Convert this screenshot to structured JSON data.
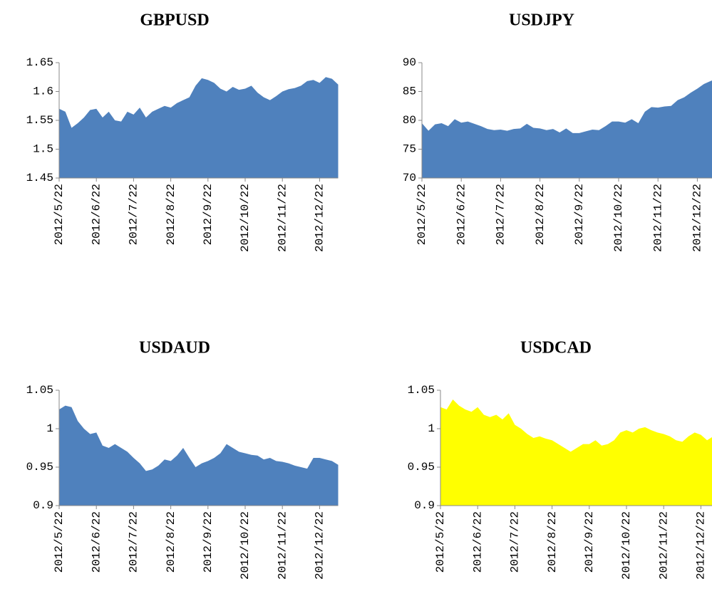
{
  "chart_data": [
    {
      "type": "area",
      "title": "GBPUSD",
      "color": "#4f81bd",
      "ylim": [
        1.45,
        1.65
      ],
      "yticks": [
        1.45,
        1.5,
        1.55,
        1.6,
        1.65
      ],
      "categories": [
        "2012/5/22",
        null,
        null,
        null,
        null,
        null,
        "2012/6/22",
        null,
        null,
        null,
        null,
        null,
        "2012/7/22",
        null,
        null,
        null,
        null,
        null,
        "2012/8/22",
        null,
        null,
        null,
        null,
        null,
        "2012/9/22",
        null,
        null,
        null,
        null,
        null,
        "2012/10/22",
        null,
        null,
        null,
        null,
        null,
        "2012/11/22",
        null,
        null,
        null,
        null,
        null,
        "2012/12/22",
        null,
        null,
        null
      ],
      "values": [
        1.57,
        1.565,
        1.537,
        1.545,
        1.555,
        1.568,
        1.57,
        1.555,
        1.565,
        1.55,
        1.548,
        1.565,
        1.56,
        1.572,
        1.555,
        1.565,
        1.57,
        1.575,
        1.572,
        1.58,
        1.585,
        1.59,
        1.61,
        1.623,
        1.62,
        1.615,
        1.605,
        1.6,
        1.608,
        1.603,
        1.605,
        1.61,
        1.598,
        1.59,
        1.585,
        1.592,
        1.6,
        1.604,
        1.606,
        1.61,
        1.618,
        1.62,
        1.615,
        1.625,
        1.622,
        1.612
      ]
    },
    {
      "type": "area",
      "title": "USDJPY",
      "color": "#4f81bd",
      "ylim": [
        70,
        90
      ],
      "yticks": [
        70,
        75,
        80,
        85,
        90
      ],
      "categories": [
        "2012/5/22",
        null,
        null,
        null,
        null,
        null,
        "2012/6/22",
        null,
        null,
        null,
        null,
        null,
        "2012/7/22",
        null,
        null,
        null,
        null,
        null,
        "2012/8/22",
        null,
        null,
        null,
        null,
        null,
        "2012/9/22",
        null,
        null,
        null,
        null,
        null,
        "2012/10/22",
        null,
        null,
        null,
        null,
        null,
        "2012/11/22",
        null,
        null,
        null,
        null,
        null,
        "2012/12/22",
        null,
        null,
        null
      ],
      "values": [
        79.5,
        78.2,
        79.3,
        79.5,
        79.0,
        80.2,
        79.6,
        79.8,
        79.4,
        79.0,
        78.5,
        78.3,
        78.4,
        78.2,
        78.5,
        78.6,
        79.4,
        78.7,
        78.6,
        78.3,
        78.5,
        77.9,
        78.6,
        77.8,
        77.8,
        78.1,
        78.4,
        78.3,
        79.0,
        79.8,
        79.8,
        79.6,
        80.2,
        79.5,
        81.5,
        82.3,
        82.2,
        82.4,
        82.5,
        83.5,
        84.0,
        84.8,
        85.5,
        86.3,
        86.8,
        87.3
      ]
    },
    {
      "type": "area",
      "title": "USDAUD",
      "color": "#4f81bd",
      "ylim": [
        0.9,
        1.05
      ],
      "yticks": [
        0.9,
        0.95,
        1,
        1.05
      ],
      "categories": [
        "2012/5/22",
        null,
        null,
        null,
        null,
        null,
        "2012/6/22",
        null,
        null,
        null,
        null,
        null,
        "2012/7/22",
        null,
        null,
        null,
        null,
        null,
        "2012/8/22",
        null,
        null,
        null,
        null,
        null,
        "2012/9/22",
        null,
        null,
        null,
        null,
        null,
        "2012/10/22",
        null,
        null,
        null,
        null,
        null,
        "2012/11/22",
        null,
        null,
        null,
        null,
        null,
        "2012/12/22",
        null,
        null,
        null
      ],
      "values": [
        1.025,
        1.03,
        1.028,
        1.01,
        1.0,
        0.993,
        0.995,
        0.978,
        0.975,
        0.98,
        0.975,
        0.97,
        0.962,
        0.955,
        0.945,
        0.947,
        0.952,
        0.96,
        0.958,
        0.965,
        0.975,
        0.962,
        0.95,
        0.955,
        0.958,
        0.962,
        0.968,
        0.98,
        0.975,
        0.97,
        0.968,
        0.966,
        0.965,
        0.96,
        0.962,
        0.958,
        0.957,
        0.955,
        0.952,
        0.95,
        0.948,
        0.962,
        0.962,
        0.96,
        0.958,
        0.953
      ]
    },
    {
      "type": "area",
      "title": "USDCAD",
      "color": "#ffff00",
      "ylim": [
        0.9,
        1.05
      ],
      "yticks": [
        0.9,
        0.95,
        1,
        1.05
      ],
      "categories": [
        "2012/5/22",
        null,
        null,
        null,
        null,
        null,
        "2012/6/22",
        null,
        null,
        null,
        null,
        null,
        "2012/7/22",
        null,
        null,
        null,
        null,
        null,
        "2012/8/22",
        null,
        null,
        null,
        null,
        null,
        "2012/9/22",
        null,
        null,
        null,
        null,
        null,
        "2012/10/22",
        null,
        null,
        null,
        null,
        null,
        "2012/11/22",
        null,
        null,
        null,
        null,
        null,
        "2012/12/22",
        null,
        null,
        null
      ],
      "values": [
        1.028,
        1.025,
        1.038,
        1.03,
        1.025,
        1.022,
        1.028,
        1.018,
        1.015,
        1.018,
        1.012,
        1.02,
        1.005,
        1.0,
        0.993,
        0.988,
        0.99,
        0.987,
        0.985,
        0.98,
        0.975,
        0.97,
        0.975,
        0.98,
        0.98,
        0.985,
        0.978,
        0.98,
        0.985,
        0.995,
        0.998,
        0.995,
        1.0,
        1.002,
        0.998,
        0.995,
        0.993,
        0.99,
        0.985,
        0.983,
        0.99,
        0.995,
        0.992,
        0.985,
        0.99,
        0.988
      ]
    }
  ]
}
